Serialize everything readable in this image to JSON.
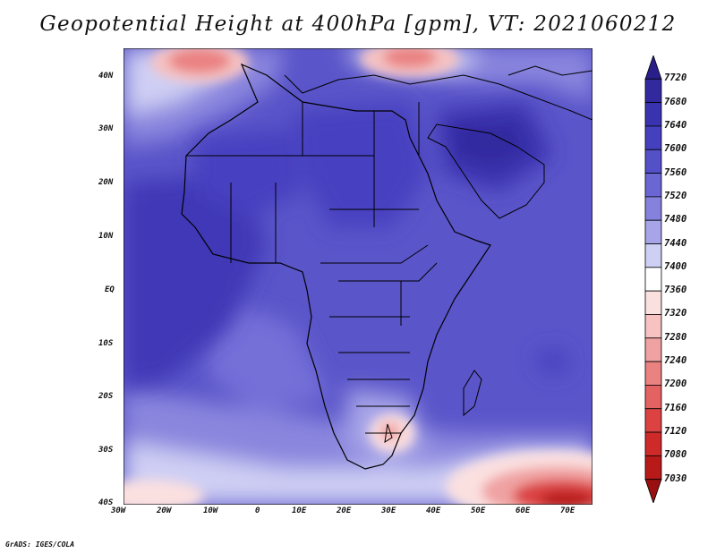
{
  "title": "Geopotential Height at 400hPa [gpm], VT: 2021060212",
  "credit": "GrADS: IGES/COLA",
  "map": {
    "lat_ticks": [
      "40N",
      "30N",
      "20N",
      "10N",
      "EQ",
      "10S",
      "20S",
      "30S",
      "40S"
    ],
    "lon_ticks": [
      "30W",
      "20W",
      "10W",
      "0",
      "10E",
      "20E",
      "30E",
      "40E",
      "50E",
      "60E",
      "70E"
    ]
  },
  "colorbar": {
    "levels": [
      "7720",
      "7680",
      "7640",
      "7600",
      "7560",
      "7520",
      "7480",
      "7440",
      "7400",
      "7360",
      "7320",
      "7280",
      "7240",
      "7200",
      "7160",
      "7120",
      "7080",
      "7030"
    ],
    "colors": [
      "#2a1f8a",
      "#33299f",
      "#3a33b0",
      "#4540be",
      "#5450c8",
      "#6a66d4",
      "#8582de",
      "#a7a5e8",
      "#cfcff4",
      "#ffffff",
      "#fbe0e0",
      "#f6c2c2",
      "#f0a2a2",
      "#ea8282",
      "#e46262",
      "#dc4242",
      "#cf2a2a",
      "#b81a1a",
      "#9a1010"
    ]
  }
}
